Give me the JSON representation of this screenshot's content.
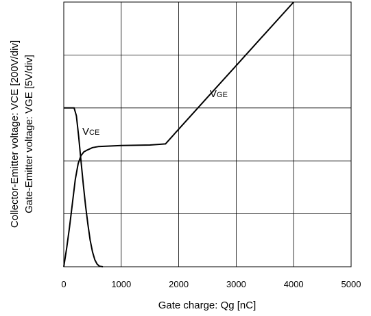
{
  "chart_data": {
    "type": "line",
    "xlabel": "Gate charge: Qg [nC]",
    "ylabel_1": "Collector-Emitter voltage: VCE [200V/div]",
    "ylabel_2": "Gate-Emitter voltage:  VGE [5V/div]",
    "xlim": [
      0,
      5000
    ],
    "ylim": [
      0,
      5
    ],
    "x_ticks": [
      "0",
      "1000",
      "2000",
      "3000",
      "4000",
      "5000"
    ],
    "grid": true,
    "series": [
      {
        "name": "VCE",
        "label_main": "V",
        "label_sub": "CE",
        "x": [
          0,
          180,
          220,
          260,
          300,
          340,
          380,
          420,
          460,
          500,
          540,
          580,
          620,
          680
        ],
        "y": [
          3.0,
          3.0,
          2.85,
          2.45,
          2.0,
          1.55,
          1.15,
          0.8,
          0.5,
          0.28,
          0.13,
          0.05,
          0.01,
          0.0
        ]
      },
      {
        "name": "VGE",
        "label_main": "V",
        "label_sub": "GE",
        "x": [
          0,
          50,
          100,
          150,
          200,
          250,
          300,
          350,
          400,
          500,
          600,
          1000,
          1500,
          1770,
          2000,
          2500,
          3000,
          3500,
          4000
        ],
        "y": [
          0.0,
          0.35,
          0.75,
          1.2,
          1.65,
          1.95,
          2.1,
          2.17,
          2.2,
          2.25,
          2.27,
          2.29,
          2.3,
          2.32,
          2.6,
          3.2,
          3.8,
          4.4,
          5.0
        ]
      }
    ]
  }
}
